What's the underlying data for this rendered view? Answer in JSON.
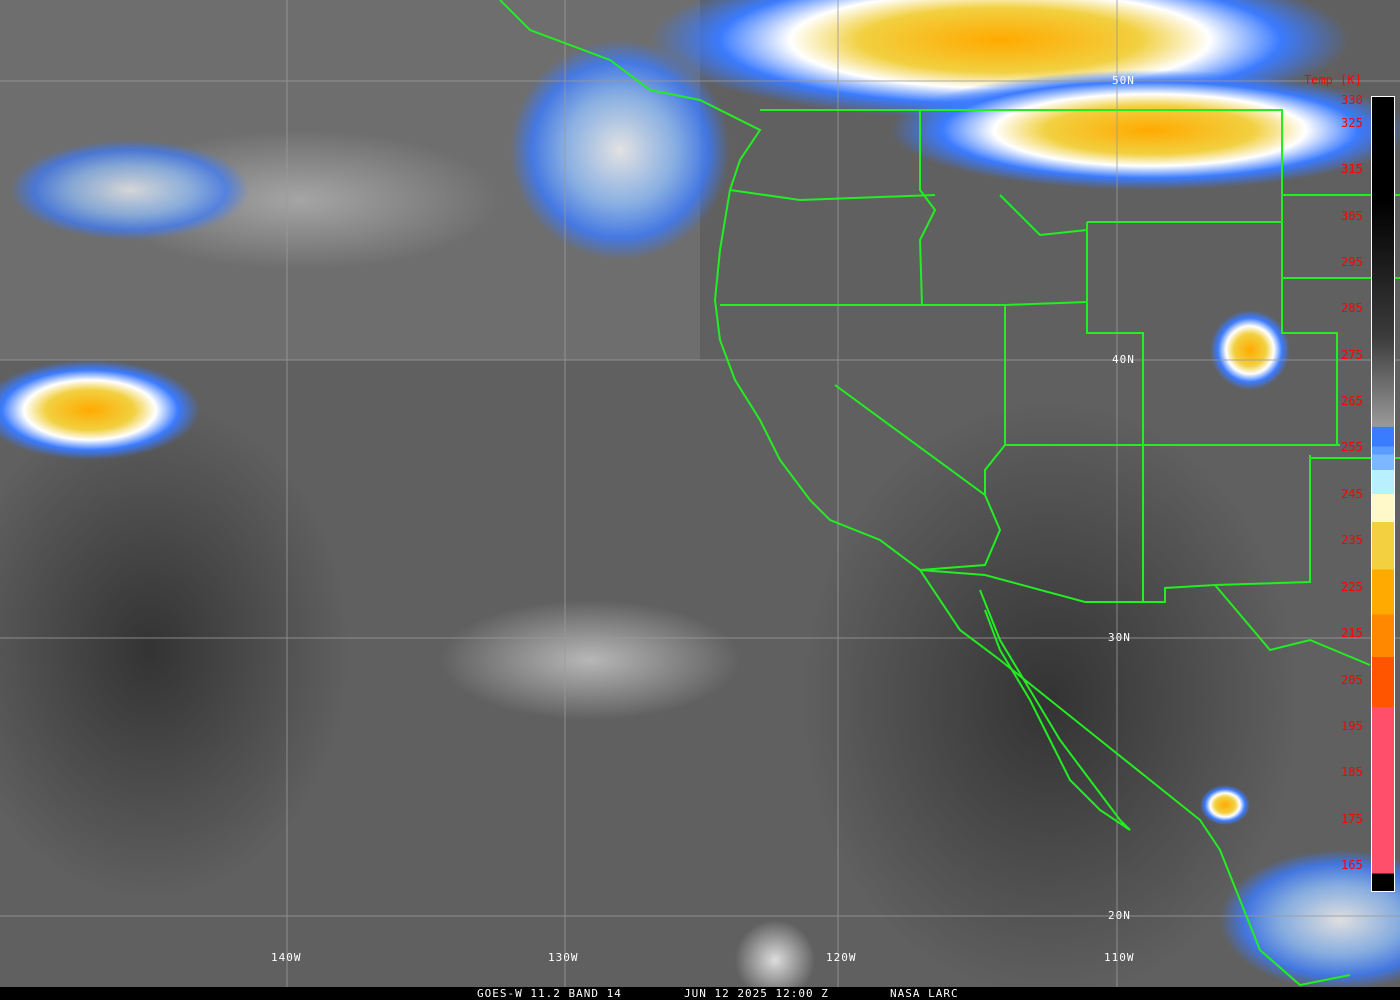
{
  "footer": {
    "satellite": "GOES-W 11.2 BAND 14",
    "datetime": "JUN 12 2025 12:00 Z",
    "credit": "NASA LARC"
  },
  "legend": {
    "title": "Temp [K]",
    "ticks": [
      "330",
      "325",
      "315",
      "305",
      "295",
      "285",
      "275",
      "265",
      "255",
      "245",
      "235",
      "225",
      "215",
      "205",
      "195",
      "185",
      "175",
      "165"
    ],
    "colors": [
      "#000000",
      "#3a3a3a",
      "#9a9a9a",
      "#3b7bff",
      "#5a9cff",
      "#7cb8ff",
      "#b8f0ff",
      "#fff8c8",
      "#f2d040",
      "#ffaa00",
      "#ff8800",
      "#ff5500",
      "#ff4f6a",
      "#000000"
    ]
  },
  "grid": {
    "lat_labels": [
      "50N",
      "40N",
      "30N",
      "20N"
    ],
    "lon_labels": [
      "140W",
      "130W",
      "120W",
      "110W"
    ]
  },
  "colors": {
    "borders": "#22ee22",
    "gridlines": "#9a9a9a",
    "label_text": "#ff0000"
  }
}
